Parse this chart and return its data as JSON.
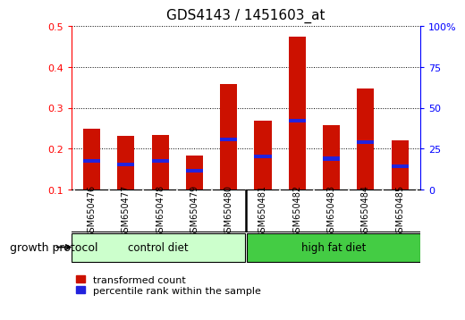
{
  "title": "GDS4143 / 1451603_at",
  "samples": [
    "GSM650476",
    "GSM650477",
    "GSM650478",
    "GSM650479",
    "GSM650480",
    "GSM650481",
    "GSM650482",
    "GSM650483",
    "GSM650484",
    "GSM650485"
  ],
  "transformed_count": [
    0.248,
    0.232,
    0.234,
    0.183,
    0.358,
    0.268,
    0.475,
    0.258,
    0.348,
    0.22
  ],
  "percentile_rank": [
    0.17,
    0.16,
    0.17,
    0.145,
    0.222,
    0.18,
    0.268,
    0.175,
    0.215,
    0.157
  ],
  "ylim_left": [
    0.1,
    0.5
  ],
  "ylim_right": [
    0,
    100
  ],
  "bar_color_red": "#cc1100",
  "bar_color_blue": "#2222dd",
  "bar_width": 0.5,
  "group1_label": "control diet",
  "group2_label": "high fat diet",
  "group1_color": "#ccffcc",
  "group2_color": "#44cc44",
  "xlabel_protocol": "growth protocol",
  "yticks_left": [
    0.1,
    0.2,
    0.3,
    0.4,
    0.5
  ],
  "yticks_right": [
    0,
    25,
    50,
    75,
    100
  ],
  "ytick_labels_right": [
    "0",
    "25",
    "50",
    "75",
    "100%"
  ],
  "legend_red": "transformed count",
  "legend_blue": "percentile rank within the sample",
  "title_fontsize": 11,
  "tick_fontsize": 8,
  "label_fontsize": 9,
  "bg_color_xticklabel": "#d0d0d0"
}
